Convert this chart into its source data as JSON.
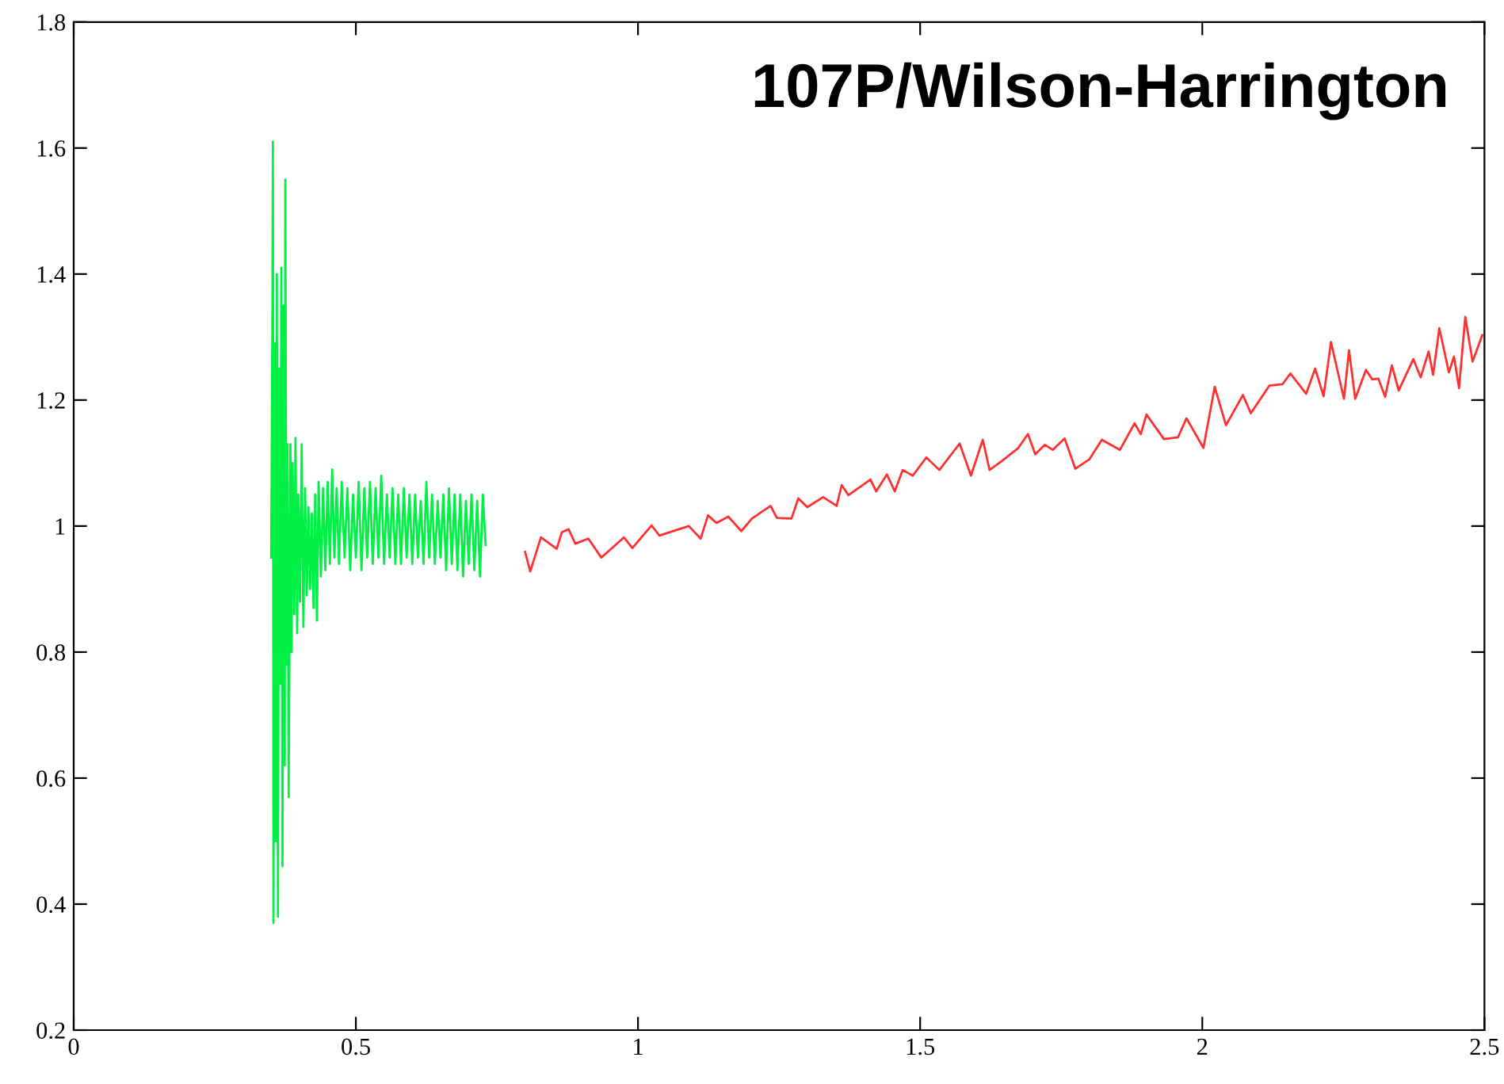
{
  "chart_data": {
    "type": "line",
    "title": "107P/Wilson-Harrington",
    "xlim": [
      0,
      2.5
    ],
    "xticks": [
      0,
      0.5,
      1,
      1.5,
      2,
      2.5
    ],
    "ylim": [
      0.2,
      1.8
    ],
    "yticks": [
      0.2,
      0.4,
      0.6,
      0.8,
      1,
      1.2,
      1.4,
      1.6,
      1.8
    ],
    "grid": false,
    "legend": false,
    "marker": "none",
    "line_style": "solid",
    "series": [
      {
        "color": "#00f045",
        "x": [
          0.35,
          0.352,
          0.353,
          0.354,
          0.356,
          0.358,
          0.36,
          0.362,
          0.364,
          0.366,
          0.368,
          0.37,
          0.372,
          0.374,
          0.375,
          0.377,
          0.379,
          0.381,
          0.384,
          0.386,
          0.388,
          0.391,
          0.393,
          0.396,
          0.398,
          0.401,
          0.404,
          0.407,
          0.41,
          0.413,
          0.416,
          0.419,
          0.422,
          0.425,
          0.428,
          0.431,
          0.434,
          0.438,
          0.442,
          0.446,
          0.45,
          0.454,
          0.458,
          0.462,
          0.466,
          0.47,
          0.475,
          0.48,
          0.485,
          0.49,
          0.495,
          0.5,
          0.505,
          0.51,
          0.515,
          0.52,
          0.525,
          0.53,
          0.535,
          0.54,
          0.545,
          0.55,
          0.555,
          0.56,
          0.565,
          0.57,
          0.575,
          0.58,
          0.585,
          0.59,
          0.595,
          0.6,
          0.605,
          0.61,
          0.615,
          0.62,
          0.625,
          0.63,
          0.635,
          0.64,
          0.645,
          0.65,
          0.655,
          0.66,
          0.665,
          0.67,
          0.675,
          0.68,
          0.685,
          0.69,
          0.695,
          0.7,
          0.705,
          0.71,
          0.715,
          0.72,
          0.725,
          0.73
        ],
        "values": [
          0.95,
          1.3,
          1.61,
          0.37,
          1.29,
          0.5,
          1.4,
          0.38,
          1.25,
          0.75,
          1.41,
          0.46,
          1.35,
          0.62,
          1.55,
          0.78,
          1.13,
          0.57,
          1.13,
          0.8,
          1.1,
          0.86,
          1.14,
          0.83,
          1.05,
          0.88,
          1.13,
          0.84,
          1.06,
          0.89,
          1.03,
          0.9,
          1.02,
          0.87,
          1.05,
          0.85,
          1.07,
          0.92,
          1.06,
          0.93,
          1.07,
          0.94,
          1.09,
          0.95,
          1.06,
          0.94,
          1.07,
          0.95,
          1.06,
          0.93,
          1.05,
          0.95,
          1.07,
          0.93,
          1.06,
          0.95,
          1.07,
          0.94,
          1.06,
          0.95,
          1.08,
          0.94,
          1.05,
          0.95,
          1.06,
          0.94,
          1.05,
          0.94,
          1.06,
          0.95,
          1.05,
          0.94,
          1.05,
          0.95,
          1.04,
          0.94,
          1.07,
          0.95,
          1.05,
          0.94,
          1.04,
          0.95,
          1.05,
          0.93,
          1.06,
          0.94,
          1.05,
          0.93,
          1.05,
          0.92,
          1.04,
          0.94,
          1.05,
          0.93,
          1.04,
          0.92,
          1.05,
          0.97
        ]
      },
      {
        "color": "#ff3030",
        "x": [
          0.8,
          0.809,
          0.828,
          0.856,
          0.865,
          0.877,
          0.889,
          0.912,
          0.935,
          0.975,
          0.99,
          1.024,
          1.038,
          1.09,
          1.111,
          1.124,
          1.139,
          1.16,
          1.183,
          1.202,
          1.235,
          1.246,
          1.272,
          1.284,
          1.3,
          1.328,
          1.352,
          1.361,
          1.373,
          1.412,
          1.422,
          1.441,
          1.455,
          1.469,
          1.487,
          1.511,
          1.534,
          1.57,
          1.59,
          1.611,
          1.623,
          1.646,
          1.674,
          1.691,
          1.704,
          1.721,
          1.735,
          1.756,
          1.775,
          1.8,
          1.822,
          1.854,
          1.88,
          1.891,
          1.901,
          1.932,
          1.957,
          1.972,
          2.002,
          2.022,
          2.042,
          2.072,
          2.086,
          2.119,
          2.142,
          2.156,
          2.184,
          2.2,
          2.215,
          2.228,
          2.251,
          2.26,
          2.271,
          2.29,
          2.301,
          2.312,
          2.324,
          2.336,
          2.348,
          2.374,
          2.387,
          2.401,
          2.409,
          2.42,
          2.437,
          2.446,
          2.455,
          2.466,
          2.479,
          2.496
        ],
        "values": [
          0.959,
          0.928,
          0.982,
          0.964,
          0.99,
          0.995,
          0.972,
          0.98,
          0.95,
          0.982,
          0.965,
          1.001,
          0.985,
          1.0,
          0.98,
          1.017,
          1.005,
          1.015,
          0.992,
          1.012,
          1.032,
          1.013,
          1.012,
          1.044,
          1.03,
          1.046,
          1.032,
          1.065,
          1.049,
          1.074,
          1.055,
          1.082,
          1.055,
          1.089,
          1.08,
          1.109,
          1.089,
          1.131,
          1.08,
          1.137,
          1.089,
          1.104,
          1.124,
          1.146,
          1.114,
          1.129,
          1.121,
          1.139,
          1.091,
          1.106,
          1.137,
          1.121,
          1.163,
          1.146,
          1.177,
          1.138,
          1.141,
          1.171,
          1.124,
          1.221,
          1.16,
          1.208,
          1.179,
          1.223,
          1.225,
          1.242,
          1.21,
          1.25,
          1.206,
          1.292,
          1.202,
          1.279,
          1.202,
          1.248,
          1.233,
          1.234,
          1.205,
          1.255,
          1.215,
          1.265,
          1.236,
          1.277,
          1.24,
          1.314,
          1.244,
          1.269,
          1.219,
          1.332,
          1.261,
          1.303
        ]
      }
    ]
  }
}
